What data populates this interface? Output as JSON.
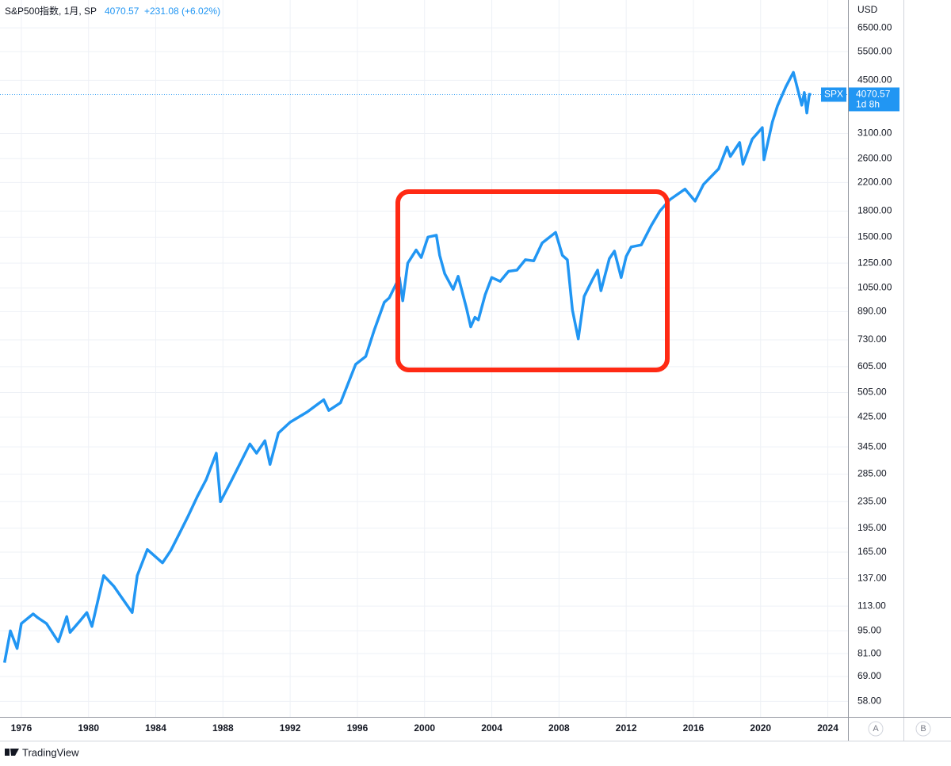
{
  "chart_data": {
    "type": "line",
    "title": "S&P500指数, 1月, SP",
    "change": "+231.08 (+6.02%)",
    "currency": "USD",
    "symbol": "SPX",
    "countdown": "1d 8h",
    "last_price": 4070.57,
    "scale_buttons": [
      "A",
      "B"
    ],
    "brand": "TradingView",
    "log_scale": true,
    "grid": true,
    "xlim": [
      1974.73,
      2025.2
    ],
    "xticks": [
      1976,
      1980,
      1984,
      1988,
      1992,
      1996,
      2000,
      2004,
      2008,
      2012,
      2016,
      2020,
      2024
    ],
    "ylim": [
      52,
      7900
    ],
    "yticks": [
      {
        "value": 58,
        "label": "58.00"
      },
      {
        "value": 69,
        "label": "69.00"
      },
      {
        "value": 81,
        "label": "81.00"
      },
      {
        "value": 95,
        "label": "95.00"
      },
      {
        "value": 113,
        "label": "113.00"
      },
      {
        "value": 137,
        "label": "137.00"
      },
      {
        "value": 165,
        "label": "165.00"
      },
      {
        "value": 195,
        "label": "195.00"
      },
      {
        "value": 235,
        "label": "235.00"
      },
      {
        "value": 285,
        "label": "285.00"
      },
      {
        "value": 345,
        "label": "345.00"
      },
      {
        "value": 425,
        "label": "425.00"
      },
      {
        "value": 505,
        "label": "505.00"
      },
      {
        "value": 605,
        "label": "605.00"
      },
      {
        "value": 730,
        "label": "730.00"
      },
      {
        "value": 890,
        "label": "890.00"
      },
      {
        "value": 1050,
        "label": "1050.00"
      },
      {
        "value": 1250,
        "label": "1250.00"
      },
      {
        "value": 1500,
        "label": "1500.00"
      },
      {
        "value": 1800,
        "label": "1800.00"
      },
      {
        "value": 2200,
        "label": "2200.00"
      },
      {
        "value": 2600,
        "label": "2600.00"
      },
      {
        "value": 3100,
        "label": "3100.00"
      },
      {
        "value": 4500,
        "label": "4500.00"
      },
      {
        "value": 5500,
        "label": "5500.00"
      },
      {
        "value": 6500,
        "label": "6500.00"
      }
    ],
    "series": [
      {
        "name": "SPX",
        "color": "#2196f3",
        "x": [
          1975.0,
          1975.35,
          1975.75,
          1976.0,
          1976.7,
          1977.0,
          1977.5,
          1978.2,
          1978.7,
          1978.9,
          1979.5,
          1979.9,
          1980.2,
          1980.9,
          1981.5,
          1982.6,
          1982.9,
          1983.5,
          1984.4,
          1984.9,
          1985.5,
          1985.9,
          1986.5,
          1987.0,
          1987.6,
          1987.85,
          1988.5,
          1989.6,
          1990.0,
          1990.5,
          1990.8,
          1991.3,
          1992.0,
          1993.0,
          1994.0,
          1994.3,
          1995.0,
          1995.9,
          1996.5,
          1997.0,
          1997.6,
          1997.9,
          1998.5,
          1998.7,
          1999.0,
          1999.5,
          1999.8,
          2000.2,
          2000.7,
          2000.9,
          2001.2,
          2001.7,
          2002.0,
          2002.5,
          2002.75,
          2003.0,
          2003.2,
          2003.6,
          2004.0,
          2004.5,
          2005.0,
          2005.5,
          2006.0,
          2006.5,
          2007.0,
          2007.8,
          2008.2,
          2008.5,
          2008.8,
          2009.15,
          2009.5,
          2010.0,
          2010.3,
          2010.5,
          2011.0,
          2011.3,
          2011.7,
          2012.0,
          2012.3,
          2012.9,
          2013.5,
          2014.0,
          2014.6,
          2015.5,
          2016.1,
          2016.6,
          2017.5,
          2018.0,
          2018.2,
          2018.75,
          2018.95,
          2019.5,
          2020.1,
          2020.2,
          2020.7,
          2021.0,
          2021.5,
          2021.95,
          2022.45,
          2022.6,
          2022.75,
          2022.9,
          2023.0
        ],
        "values": [
          76,
          95,
          84,
          100,
          107,
          104,
          100,
          88,
          105,
          94,
          102,
          108,
          98,
          140,
          130,
          108,
          140,
          168,
          153,
          167,
          192,
          211,
          245,
          274,
          330,
          235,
          272,
          352,
          330,
          360,
          305,
          380,
          410,
          440,
          480,
          445,
          470,
          615,
          650,
          780,
          950,
          980,
          1130,
          960,
          1250,
          1370,
          1300,
          1500,
          1520,
          1320,
          1160,
          1040,
          1140,
          910,
          800,
          855,
          840,
          1000,
          1130,
          1100,
          1180,
          1190,
          1280,
          1270,
          1440,
          1550,
          1320,
          1280,
          900,
          735,
          990,
          1115,
          1190,
          1030,
          1290,
          1360,
          1130,
          1310,
          1400,
          1420,
          1630,
          1800,
          1950,
          2100,
          1930,
          2170,
          2420,
          2820,
          2640,
          2910,
          2500,
          2980,
          3230,
          2580,
          3360,
          3760,
          4300,
          4760,
          3780,
          4130,
          3580,
          4080,
          4070
        ]
      }
    ]
  }
}
